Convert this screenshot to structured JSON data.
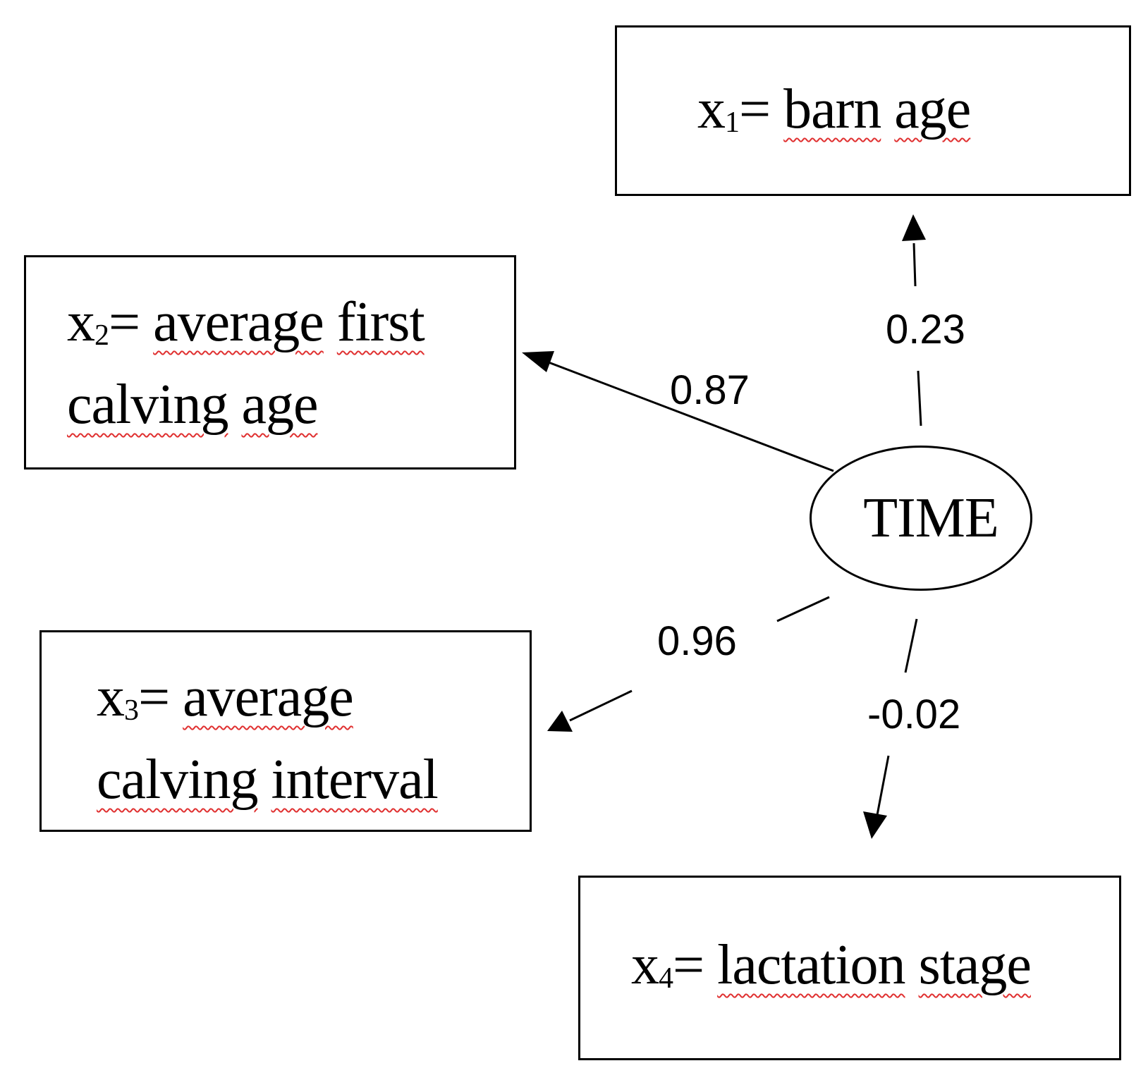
{
  "latent": {
    "label": "TIME"
  },
  "indicators": [
    {
      "var": "x",
      "index": "1",
      "eq": "= ",
      "words": [
        "barn",
        "age"
      ],
      "loading": "0.23"
    },
    {
      "var": "x",
      "index": "2",
      "eq": "= ",
      "words": [
        "average",
        "first",
        "calving",
        "age"
      ],
      "loading": "0.87"
    },
    {
      "var": "x",
      "index": "3",
      "eq": "= ",
      "words": [
        "average",
        "calving",
        "interval"
      ],
      "loading": "0.96"
    },
    {
      "var": "x",
      "index": "4",
      "eq": "= ",
      "words": [
        "lactation",
        "stage"
      ],
      "loading": "-0.02"
    }
  ],
  "colors": {
    "line": "#000000",
    "spellcheck_underline": "#e03030"
  }
}
